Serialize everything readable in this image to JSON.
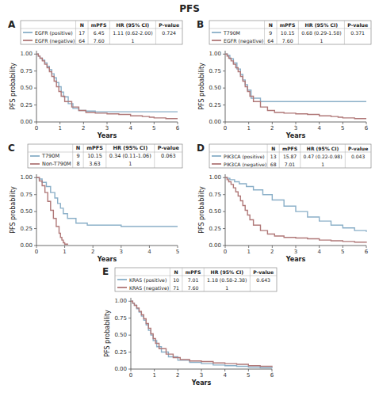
{
  "title": "PFS",
  "chart_data": [
    {
      "type": "step",
      "title": "A",
      "x_label": "Years",
      "y_label": "PFS probability",
      "xlim": [
        0,
        6
      ],
      "xticks": [
        0,
        1,
        2,
        3,
        4,
        5,
        6
      ],
      "ylim": [
        0,
        1.05
      ],
      "yticks": [
        {
          "value": 0,
          "label": "0.00"
        },
        {
          "value": 0.25,
          "label": "0.25"
        },
        {
          "value": 0.5,
          "label": "0.50"
        },
        {
          "value": 0.75,
          "label": "0.75"
        },
        {
          "value": 1,
          "label": "1.00"
        }
      ],
      "series": [
        {
          "name": "EGFR (positive)",
          "color": "#8aafc8",
          "x": [
            0,
            0.08,
            0.15,
            0.25,
            0.35,
            0.45,
            0.55,
            0.65,
            0.75,
            0.85,
            0.95,
            1.05,
            1.15,
            1.35,
            1.55,
            1.8,
            2.1,
            2.5,
            3.0,
            3.5,
            4.0,
            4.5,
            5.0,
            5.5,
            6.0
          ],
          "values": [
            1.0,
            0.97,
            0.94,
            0.91,
            0.87,
            0.82,
            0.77,
            0.71,
            0.65,
            0.58,
            0.52,
            0.44,
            0.37,
            0.27,
            0.2,
            0.17,
            0.16,
            0.15,
            0.15,
            0.15,
            0.15,
            0.15,
            0.15,
            0.15,
            0.15
          ]
        },
        {
          "name": "EGFR (negative)",
          "color": "#b07878",
          "x": [
            0,
            0.08,
            0.15,
            0.25,
            0.35,
            0.45,
            0.55,
            0.65,
            0.75,
            0.85,
            0.95,
            1.05,
            1.2,
            1.5,
            1.8,
            2.1,
            2.5,
            3.0,
            3.5,
            4.0,
            4.5,
            4.8,
            5.0,
            5.5,
            6.0
          ],
          "values": [
            1.0,
            0.97,
            0.94,
            0.9,
            0.85,
            0.8,
            0.74,
            0.67,
            0.6,
            0.52,
            0.45,
            0.38,
            0.3,
            0.22,
            0.17,
            0.14,
            0.13,
            0.12,
            0.11,
            0.09,
            0.08,
            0.07,
            0.06,
            0.05,
            0.05
          ]
        }
      ],
      "table": {
        "columns": [
          "N",
          "mPFS",
          "HR (95% CI)",
          "P-value"
        ],
        "rows": [
          [
            "17",
            "6.45",
            "1.11 (0.62-2.00)",
            "0.724"
          ],
          [
            "64",
            "7.60",
            "1"
          ]
        ]
      }
    },
    {
      "type": "step",
      "title": "B",
      "x_label": "Years",
      "y_label": "PFS probability",
      "xlim": [
        0,
        6
      ],
      "xticks": [
        0,
        1,
        2,
        3,
        4,
        5,
        6
      ],
      "ylim": [
        0,
        1.05
      ],
      "yticks": [
        {
          "value": 0,
          "label": "0.00"
        },
        {
          "value": 0.25,
          "label": "0.25"
        },
        {
          "value": 0.5,
          "label": "0.50"
        },
        {
          "value": 0.75,
          "label": "0.75"
        },
        {
          "value": 1,
          "label": "1.00"
        }
      ],
      "series": [
        {
          "name": "T790M",
          "color": "#8aafc8",
          "x": [
            0,
            0.1,
            0.2,
            0.35,
            0.5,
            0.65,
            0.75,
            0.85,
            0.95,
            1.1,
            1.5,
            2.0,
            2.5,
            3.0,
            3.5,
            4.0,
            4.8,
            5.0,
            6.0
          ],
          "values": [
            1.0,
            0.98,
            0.93,
            0.87,
            0.78,
            0.7,
            0.62,
            0.55,
            0.47,
            0.35,
            0.3,
            0.3,
            0.3,
            0.3,
            0.3,
            0.3,
            0.3,
            0.3,
            0.3
          ]
        },
        {
          "name": "EGFR (negative)",
          "color": "#b07878",
          "x": [
            0,
            0.08,
            0.15,
            0.25,
            0.35,
            0.45,
            0.55,
            0.65,
            0.75,
            0.85,
            0.95,
            1.05,
            1.2,
            1.5,
            1.8,
            2.1,
            2.5,
            3.0,
            3.5,
            4.0,
            4.5,
            4.8,
            5.0,
            5.5,
            6.0
          ],
          "values": [
            1.0,
            0.97,
            0.94,
            0.9,
            0.85,
            0.8,
            0.74,
            0.67,
            0.6,
            0.52,
            0.45,
            0.38,
            0.3,
            0.22,
            0.17,
            0.14,
            0.13,
            0.12,
            0.11,
            0.09,
            0.08,
            0.07,
            0.06,
            0.05,
            0.05
          ]
        }
      ],
      "table": {
        "columns": [
          "N",
          "mPFS",
          "HR (95% CI)",
          "P-value"
        ],
        "rows": [
          [
            "9",
            "10.15",
            "0.68 (0.29-1.58)",
            "0.371"
          ],
          [
            "64",
            "7.60",
            "1"
          ]
        ]
      }
    },
    {
      "type": "step",
      "title": "C",
      "x_label": "Years",
      "y_label": "PFS probability",
      "xlim": [
        0,
        5
      ],
      "xticks": [
        0,
        1,
        2,
        3,
        4,
        5
      ],
      "ylim": [
        0,
        1.05
      ],
      "yticks": [
        {
          "value": 0,
          "label": "0.00"
        },
        {
          "value": 0.25,
          "label": "0.25"
        },
        {
          "value": 0.5,
          "label": "0.50"
        },
        {
          "value": 0.75,
          "label": "0.75"
        },
        {
          "value": 1,
          "label": "1.00"
        }
      ],
      "series": [
        {
          "name": "T790M",
          "color": "#8aafc8",
          "x": [
            0,
            0.1,
            0.2,
            0.35,
            0.5,
            0.65,
            0.75,
            0.85,
            0.95,
            1.1,
            1.4,
            1.8,
            2.2,
            3.0,
            3.5,
            4.0,
            4.5,
            5.0
          ],
          "values": [
            1.0,
            0.98,
            0.93,
            0.87,
            0.78,
            0.7,
            0.62,
            0.55,
            0.47,
            0.4,
            0.33,
            0.3,
            0.3,
            0.28,
            0.28,
            0.28,
            0.28,
            0.28
          ]
        },
        {
          "name": "Non-T790M",
          "color": "#b07878",
          "x": [
            0,
            0.1,
            0.2,
            0.3,
            0.4,
            0.5,
            0.6,
            0.7,
            0.8,
            0.85,
            0.9,
            0.95,
            1.0,
            1.1
          ],
          "values": [
            1.0,
            0.95,
            0.88,
            0.78,
            0.65,
            0.52,
            0.4,
            0.28,
            0.18,
            0.12,
            0.08,
            0.04,
            0.02,
            0.01
          ]
        }
      ],
      "table": {
        "columns": [
          "N",
          "mPFS",
          "HR (95% CI)",
          "P-value"
        ],
        "rows": [
          [
            "9",
            "10.15",
            "0.34 (0.11-1.06)",
            "0.063"
          ],
          [
            "8",
            "3.63",
            "1"
          ]
        ]
      }
    },
    {
      "type": "step",
      "title": "D",
      "x_label": "Years",
      "y_label": "PFS probability",
      "xlim": [
        0,
        6
      ],
      "xticks": [
        0,
        1,
        2,
        3,
        4,
        5,
        6
      ],
      "ylim": [
        0,
        1.05
      ],
      "yticks": [
        {
          "value": 0,
          "label": "0.00"
        },
        {
          "value": 0.25,
          "label": "0.25"
        },
        {
          "value": 0.5,
          "label": "0.50"
        },
        {
          "value": 0.75,
          "label": "0.75"
        },
        {
          "value": 1,
          "label": "1.00"
        }
      ],
      "series": [
        {
          "name": "PIK3CA (positive)",
          "color": "#8aafc8",
          "x": [
            0,
            0.1,
            0.2,
            0.4,
            0.6,
            0.9,
            1.2,
            1.6,
            2.0,
            2.5,
            3.0,
            3.5,
            4.0,
            4.5,
            5.0,
            5.5,
            6.0
          ],
          "values": [
            1.0,
            0.99,
            0.97,
            0.94,
            0.91,
            0.87,
            0.82,
            0.75,
            0.67,
            0.58,
            0.5,
            0.42,
            0.36,
            0.3,
            0.26,
            0.22,
            0.2
          ]
        },
        {
          "name": "PIK3CA (negative)",
          "color": "#b07878",
          "x": [
            0,
            0.08,
            0.15,
            0.25,
            0.35,
            0.45,
            0.55,
            0.65,
            0.75,
            0.85,
            0.95,
            1.05,
            1.2,
            1.5,
            1.8,
            2.1,
            2.5,
            3.0,
            3.5,
            4.0,
            4.5,
            5.0,
            5.5,
            6.0
          ],
          "values": [
            1.0,
            0.97,
            0.94,
            0.9,
            0.85,
            0.79,
            0.73,
            0.66,
            0.59,
            0.52,
            0.45,
            0.38,
            0.3,
            0.22,
            0.17,
            0.14,
            0.12,
            0.11,
            0.1,
            0.08,
            0.07,
            0.06,
            0.05,
            0.04
          ]
        }
      ],
      "table": {
        "columns": [
          "N",
          "mPFS",
          "HR (95% CI)",
          "P-value"
        ],
        "rows": [
          [
            "13",
            "15.87",
            "0.47 (0.22-0.98)",
            "0.043"
          ],
          [
            "68",
            "7.01",
            "1"
          ]
        ]
      }
    },
    {
      "type": "step",
      "title": "E",
      "x_label": "Years",
      "y_label": "PFS probability",
      "xlim": [
        0,
        6
      ],
      "xticks": [
        0,
        1,
        2,
        3,
        4,
        5,
        6
      ],
      "ylim": [
        0,
        1.05
      ],
      "yticks": [
        {
          "value": 0,
          "label": "0.00"
        },
        {
          "value": 0.25,
          "label": "0.25"
        },
        {
          "value": 0.5,
          "label": "0.50"
        },
        {
          "value": 0.75,
          "label": "0.75"
        },
        {
          "value": 1,
          "label": "1.00"
        }
      ],
      "series": [
        {
          "name": "KRAS (positive)",
          "color": "#8aafc8",
          "x": [
            0,
            0.08,
            0.15,
            0.25,
            0.35,
            0.45,
            0.55,
            0.65,
            0.75,
            0.85,
            0.95,
            1.1,
            1.3,
            1.6,
            2.0,
            2.5,
            3.0,
            3.5,
            4.0,
            4.5,
            5.0,
            5.5,
            6.0
          ],
          "values": [
            1.0,
            0.97,
            0.94,
            0.89,
            0.84,
            0.78,
            0.72,
            0.65,
            0.57,
            0.5,
            0.42,
            0.33,
            0.25,
            0.18,
            0.13,
            0.1,
            0.08,
            0.06,
            0.05,
            0.04,
            0.03,
            0.02,
            0.01
          ]
        },
        {
          "name": "KRAS (negative)",
          "color": "#b07878",
          "x": [
            0,
            0.08,
            0.15,
            0.25,
            0.35,
            0.45,
            0.55,
            0.65,
            0.75,
            0.85,
            0.95,
            1.05,
            1.2,
            1.5,
            1.8,
            2.1,
            2.5,
            3.0,
            3.5,
            4.0,
            4.5,
            5.0,
            5.5,
            6.0
          ],
          "values": [
            1.0,
            0.97,
            0.94,
            0.9,
            0.85,
            0.8,
            0.74,
            0.67,
            0.6,
            0.52,
            0.45,
            0.38,
            0.3,
            0.22,
            0.17,
            0.14,
            0.12,
            0.11,
            0.09,
            0.08,
            0.07,
            0.05,
            0.04,
            0.03
          ]
        }
      ],
      "table": {
        "columns": [
          "N",
          "mPFS",
          "HR (95% CI)",
          "P-value"
        ],
        "rows": [
          [
            "10",
            "7.01",
            "1.18 (0.58-2.38)",
            "0.643"
          ],
          [
            "71",
            "7.60",
            "1"
          ]
        ]
      }
    }
  ]
}
